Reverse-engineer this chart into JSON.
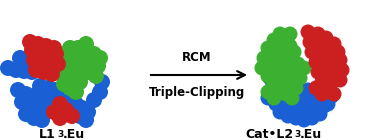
{
  "background_color": "#ffffff",
  "arrow_text_top": "RCM",
  "arrow_text_bottom": "Triple-Clipping",
  "label_left_main": "L1",
  "label_left_sub": "3",
  "label_left_suffix": ".Eu",
  "label_right_main": "Cat•L2",
  "label_right_sub": "3",
  "label_right_suffix": ".Eu",
  "colors": {
    "blue": "#1a5fd4",
    "green": "#3cb030",
    "red": "#cc2020"
  },
  "fig_width": 3.78,
  "fig_height": 1.4,
  "dpi": 100
}
